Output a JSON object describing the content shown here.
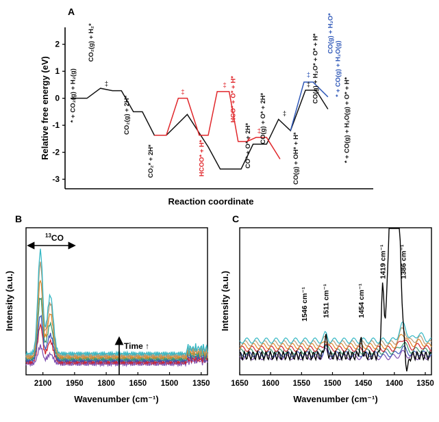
{
  "panel_labels": {
    "a": "A",
    "b": "B",
    "c": "C"
  },
  "colors": {
    "black_path": "#111111",
    "red_path": "#e0262a",
    "blue_path": "#2f58b8",
    "axis": "#000000",
    "series_B": [
      "#7f4fb0",
      "#cf2430",
      "#3b56b8",
      "#3d9a73",
      "#e08a2c",
      "#b89a76",
      "#35b7c4"
    ],
    "series_C": [
      "#7f4fb0",
      "#3b56b8",
      "#3d9a73",
      "#cf2430",
      "#e08a2c",
      "#b89a76",
      "#35b7c4"
    ],
    "trace_C": "#000000"
  },
  "chart_data": [
    {
      "panel": "A",
      "type": "line",
      "ylabel": "Relative free energy (eV)",
      "xlabel": "Reaction coordinate",
      "ylim": [
        -3.2,
        2.5
      ],
      "yticks": [
        "2",
        "1",
        "0",
        "-1",
        "-2",
        "-3"
      ],
      "ytick_values": [
        2,
        1,
        0,
        -1,
        -2,
        -3
      ],
      "xlim": [
        0,
        10
      ],
      "series": [
        {
          "color_key": "black_path",
          "x": [
            0,
            0.55,
            1.0,
            1.4,
            1.7,
            2.1,
            2.4,
            2.8,
            3.2,
            3.9,
            4.6,
            5.0,
            5.7,
            6.1,
            6.55,
            6.95,
            7.35,
            7.85,
            8.2,
            8.6
          ],
          "y": [
            0,
            0,
            0.37,
            0.28,
            0.28,
            -0.5,
            -0.5,
            -1.37,
            -1.37,
            -0.6,
            -1.8,
            -2.62,
            -2.62,
            -1.7,
            -1.7,
            -0.78,
            -1.2,
            0.3,
            0.3,
            -0.4
          ]
        },
        {
          "color_key": "red_path",
          "x": [
            2.8,
            3.2,
            3.6,
            3.9,
            4.3,
            4.6,
            4.9,
            5.3,
            5.6,
            5.9,
            6.0
          ],
          "y": [
            -1.37,
            -1.37,
            0.0,
            0.0,
            -1.37,
            -1.37,
            0.25,
            0.25,
            -1.6,
            -1.6,
            -1.45
          ]
        },
        {
          "color_key": "red_path",
          "x": [
            5.9,
            6.2,
            6.55,
            7.0
          ],
          "y": [
            -1.6,
            -1.45,
            -1.45,
            -2.25
          ]
        },
        {
          "color_key": "blue_path",
          "x": [
            7.35,
            7.8,
            8.1,
            8.6
          ],
          "y": [
            -1.2,
            0.6,
            0.6,
            0.05
          ]
        }
      ],
      "annotations": [
        {
          "text": "* + CO₂(g) + H₂(g)",
          "color_key": "black_path"
        },
        {
          "text": "CO₂(g) + H₂*",
          "color_key": "black_path"
        },
        {
          "text": "CO₂(g) + 2H*",
          "color_key": "black_path"
        },
        {
          "text": "CO₂* + 2H*",
          "color_key": "black_path"
        },
        {
          "text": "HCOO* + H*",
          "color_key": "red_path"
        },
        {
          "text": "HCO* + O* + H*",
          "color_key": "red_path"
        },
        {
          "text": "CO* + O* + 2H*",
          "color_key": "black_path"
        },
        {
          "text": "CO(g) + O* + 2H*",
          "color_key": "black_path"
        },
        {
          "text": "CO(g) + OH* + H*",
          "color_key": "black_path"
        },
        {
          "text": "CO(g) + H₂O* + O* + H*",
          "color_key": "black_path"
        },
        {
          "text": "CO(g) + H₂O*",
          "color_key": "blue_path"
        },
        {
          "text": "* + CO(g) + H₂O(g)",
          "color_key": "blue_path"
        },
        {
          "text": "* + CO(g) + H₂O(g) + O* + H*",
          "color_key": "black_path"
        }
      ],
      "ts_symbol": "‡"
    },
    {
      "panel": "B",
      "type": "line",
      "xlabel": "Wavenumber (cm⁻¹)",
      "ylabel": "Intensity (a.u.)",
      "xlim": [
        2180,
        1320
      ],
      "xticks": [
        2100,
        1950,
        1800,
        1650,
        1500,
        1350
      ],
      "xtick_labels": [
        "2100",
        "1950",
        "1800",
        "1650",
        "1500",
        "1350"
      ],
      "annotation_13co": "13CO",
      "annotation_time": "Time ↑",
      "peak_heights": [
        0.17,
        0.36,
        0.44,
        0.6,
        0.75,
        0.9,
        1.0
      ],
      "series_count": 7
    },
    {
      "panel": "C",
      "type": "line",
      "xlabel": "Wavenumber (cm⁻¹)",
      "ylabel": "Intensity (a.u.)",
      "xlim": [
        1650,
        1340
      ],
      "xticks": [
        1650,
        1600,
        1550,
        1500,
        1450,
        1400,
        1350
      ],
      "xtick_labels": [
        "1650",
        "1600",
        "1550",
        "1500",
        "1450",
        "1400",
        "1350"
      ],
      "peaks": [
        {
          "x": 1546,
          "label": "1546 cm⁻¹"
        },
        {
          "x": 1511,
          "label": "1511 cm⁻¹"
        },
        {
          "x": 1454,
          "label": "1454 cm⁻¹"
        },
        {
          "x": 1419,
          "label": "1419 cm⁻¹"
        },
        {
          "x": 1386,
          "label": "1386 cm⁻¹"
        }
      ],
      "series_count": 7
    }
  ]
}
